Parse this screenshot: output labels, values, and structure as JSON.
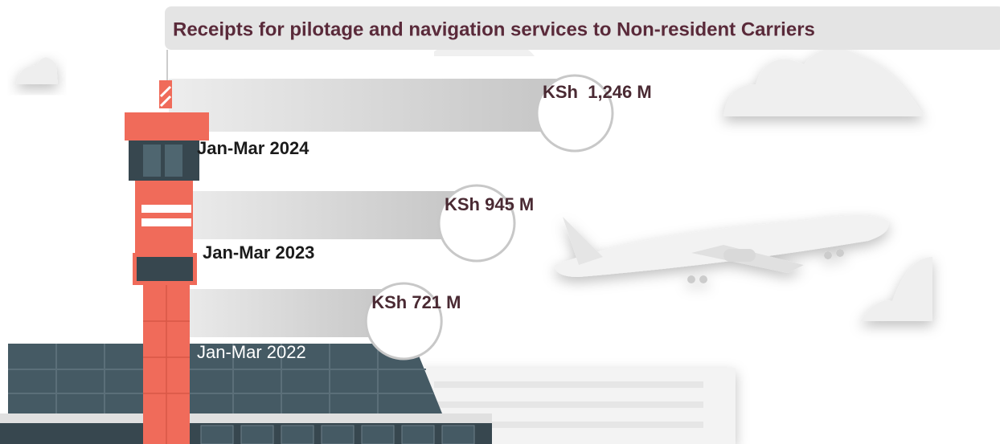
{
  "chart_data": {
    "type": "bar",
    "orientation": "horizontal",
    "title": "Receipts for pilotage and navigation services to Non-resident Carriers",
    "categories": [
      "Jan-Mar 2024",
      "Jan-Mar 2023",
      "Jan-Mar 2022"
    ],
    "values": [
      1246,
      945,
      721
    ],
    "value_labels": [
      "KSh  1,246 M",
      "KSh 945 M",
      "KSh 721 M"
    ],
    "color": "#bdbdbd"
  }
}
